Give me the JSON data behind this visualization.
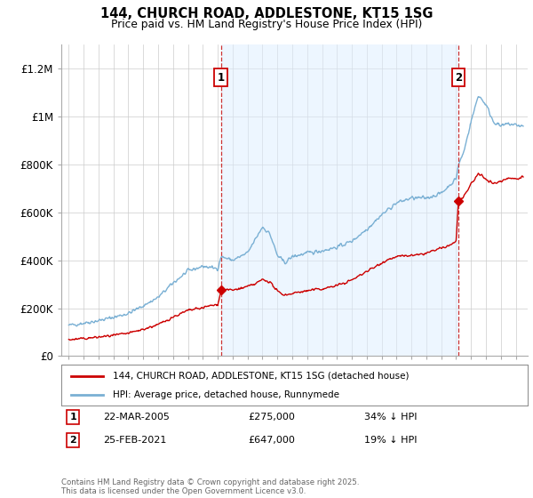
{
  "title": "144, CHURCH ROAD, ADDLESTONE, KT15 1SG",
  "subtitle": "Price paid vs. HM Land Registry's House Price Index (HPI)",
  "legend_label_red": "144, CHURCH ROAD, ADDLESTONE, KT15 1SG (detached house)",
  "legend_label_blue": "HPI: Average price, detached house, Runnymede",
  "annotation1_date": "22-MAR-2005",
  "annotation1_price": "£275,000",
  "annotation1_hpi": "34% ↓ HPI",
  "annotation2_date": "25-FEB-2021",
  "annotation2_price": "£647,000",
  "annotation2_hpi": "19% ↓ HPI",
  "footnote": "Contains HM Land Registry data © Crown copyright and database right 2025.\nThis data is licensed under the Open Government Licence v3.0.",
  "ylim": [
    0,
    1300000
  ],
  "yticks": [
    0,
    200000,
    400000,
    600000,
    800000,
    1000000,
    1200000
  ],
  "ytick_labels": [
    "£0",
    "£200K",
    "£400K",
    "£600K",
    "£800K",
    "£1M",
    "£1.2M"
  ],
  "color_red": "#cc0000",
  "color_blue": "#7ab0d4",
  "color_shade": "#ddeeff",
  "color_vline": "#cc3333",
  "background_color": "#ffffff",
  "grid_color": "#cccccc",
  "sale1_x": 2005.22,
  "sale1_y": 275000,
  "sale2_x": 2021.15,
  "sale2_y": 647000,
  "xmin": 1994.5,
  "xmax": 2025.8
}
